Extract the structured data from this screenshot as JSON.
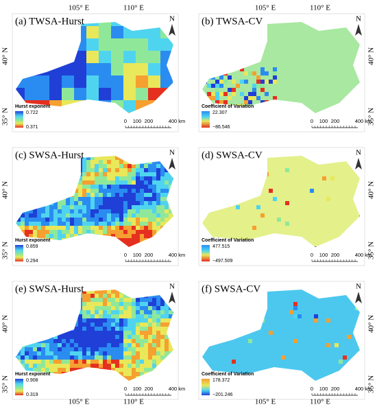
{
  "panels": [
    {
      "label": "(a) TWSA-Hurst",
      "legend_title": "Hurst exponent",
      "legend_max": "0.722",
      "legend_min": "0.371"
    },
    {
      "label": "(b) TWSA-CV",
      "legend_title": "Coefficient of Variation",
      "legend_max": "22.307",
      "legend_min": "−86.546"
    },
    {
      "label": "(c) SWSA-Hurst",
      "legend_title": "Hurst exponent",
      "legend_max": "0.859",
      "legend_min": "0.294"
    },
    {
      "label": "(d) SWSA-CV",
      "legend_title": "Coefficient of Variation",
      "legend_max": "477.515",
      "legend_min": "−497.509"
    },
    {
      "label": "(e) SWSA-Hurst",
      "legend_title": "Hurst exponent",
      "legend_max": "0.908",
      "legend_min": "0.319"
    },
    {
      "label": "(f) SWSA-CV",
      "legend_title": "Coefficient of Variation",
      "legend_max": "178.372",
      "legend_min": "−201.246"
    }
  ],
  "longitudes": [
    "105° E",
    "110° E"
  ],
  "latitudes": [
    "40° N",
    "35° N"
  ],
  "scale_bar": [
    "0",
    "100",
    "200",
    "400 km"
  ],
  "north": "N"
}
